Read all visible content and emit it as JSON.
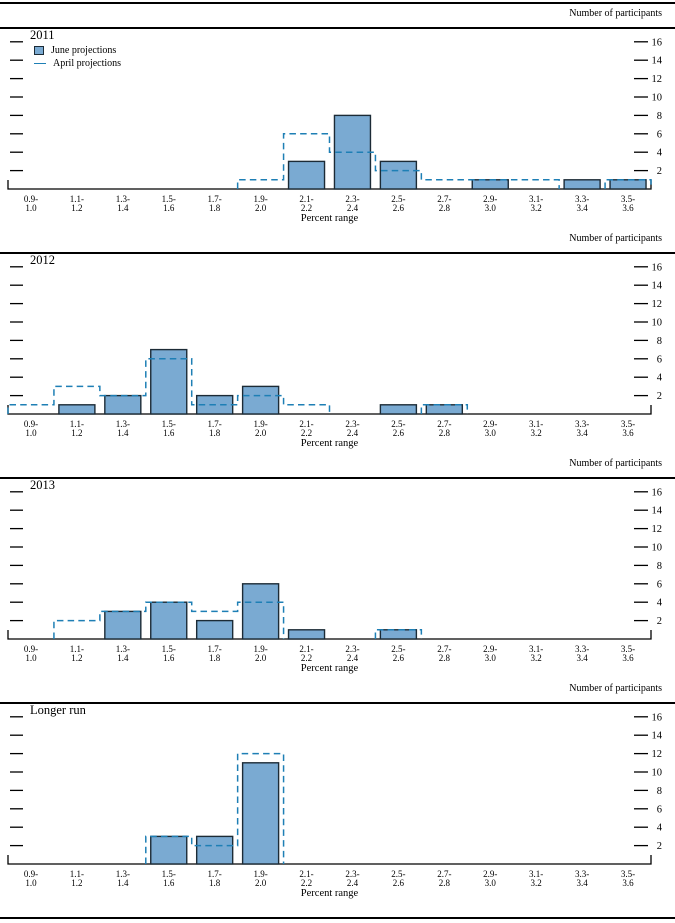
{
  "colors": {
    "bar_fill": "#7aaad2",
    "bar_border": "#1c2b36",
    "april_line": "#1e7fb5",
    "axis": "#000000"
  },
  "chart_data": [
    {
      "type": "bar",
      "title": "2011",
      "ylabel": "Number of participants",
      "xlabel": "Percent range",
      "categories": [
        "0.9-1.0",
        "1.1-1.2",
        "1.3-1.4",
        "1.5-1.6",
        "1.7-1.8",
        "1.9-2.0",
        "2.1-2.2",
        "2.3-2.4",
        "2.5-2.6",
        "2.7-2.8",
        "2.9-3.0",
        "3.1-3.2",
        "3.3-3.4",
        "3.5-3.6"
      ],
      "series": [
        {
          "name": "June projections",
          "style": "bar",
          "values": [
            0,
            0,
            0,
            0,
            0,
            0,
            3,
            8,
            3,
            0,
            1,
            0,
            1,
            1
          ]
        },
        {
          "name": "April projections",
          "style": "dashed-outline",
          "values": [
            0,
            0,
            0,
            0,
            0,
            1,
            6,
            4,
            2,
            1,
            1,
            1,
            0,
            1
          ]
        }
      ],
      "yticks": [
        2,
        4,
        6,
        8,
        10,
        12,
        14,
        16
      ],
      "ylim": [
        0,
        17.6
      ],
      "legend_position": "top-left",
      "grid": false
    },
    {
      "type": "bar",
      "title": "2012",
      "ylabel": "Number of participants",
      "xlabel": "Percent range",
      "categories": [
        "0.9-1.0",
        "1.1-1.2",
        "1.3-1.4",
        "1.5-1.6",
        "1.7-1.8",
        "1.9-2.0",
        "2.1-2.2",
        "2.3-2.4",
        "2.5-2.6",
        "2.7-2.8",
        "2.9-3.0",
        "3.1-3.2",
        "3.3-3.4",
        "3.5-3.6"
      ],
      "series": [
        {
          "name": "June projections",
          "style": "bar",
          "values": [
            0,
            1,
            2,
            7,
            2,
            3,
            0,
            0,
            1,
            1,
            0,
            0,
            0,
            0
          ]
        },
        {
          "name": "April projections",
          "style": "dashed-outline",
          "values": [
            1,
            3,
            2,
            6,
            1,
            2,
            1,
            0,
            0,
            1,
            0,
            0,
            0,
            0
          ]
        }
      ],
      "yticks": [
        2,
        4,
        6,
        8,
        10,
        12,
        14,
        16
      ],
      "ylim": [
        0,
        17.6
      ],
      "legend_position": "none",
      "grid": false
    },
    {
      "type": "bar",
      "title": "2013",
      "ylabel": "Number of participants",
      "xlabel": "Percent range",
      "categories": [
        "0.9-1.0",
        "1.1-1.2",
        "1.3-1.4",
        "1.5-1.6",
        "1.7-1.8",
        "1.9-2.0",
        "2.1-2.2",
        "2.3-2.4",
        "2.5-2.6",
        "2.7-2.8",
        "2.9-3.0",
        "3.1-3.2",
        "3.3-3.4",
        "3.5-3.6"
      ],
      "series": [
        {
          "name": "June projections",
          "style": "bar",
          "values": [
            0,
            0,
            3,
            4,
            2,
            6,
            1,
            0,
            1,
            0,
            0,
            0,
            0,
            0
          ]
        },
        {
          "name": "April projections",
          "style": "dashed-outline",
          "values": [
            0,
            2,
            3,
            4,
            3,
            4,
            0,
            0,
            1,
            0,
            0,
            0,
            0,
            0
          ]
        }
      ],
      "yticks": [
        2,
        4,
        6,
        8,
        10,
        12,
        14,
        16
      ],
      "ylim": [
        0,
        17.6
      ],
      "legend_position": "none",
      "grid": false
    },
    {
      "type": "bar",
      "title": "Longer run",
      "ylabel": "Number of participants",
      "xlabel": "Percent range",
      "categories": [
        "0.9-1.0",
        "1.1-1.2",
        "1.3-1.4",
        "1.5-1.6",
        "1.7-1.8",
        "1.9-2.0",
        "2.1-2.2",
        "2.3-2.4",
        "2.5-2.6",
        "2.7-2.8",
        "2.9-3.0",
        "3.1-3.2",
        "3.3-3.4",
        "3.5-3.6"
      ],
      "series": [
        {
          "name": "June projections",
          "style": "bar",
          "values": [
            0,
            0,
            0,
            3,
            3,
            11,
            0,
            0,
            0,
            0,
            0,
            0,
            0,
            0
          ]
        },
        {
          "name": "April projections",
          "style": "dashed-outline",
          "values": [
            0,
            0,
            0,
            3,
            2,
            12,
            0,
            0,
            0,
            0,
            0,
            0,
            0,
            0
          ]
        }
      ],
      "yticks": [
        2,
        4,
        6,
        8,
        10,
        12,
        14,
        16
      ],
      "ylim": [
        0,
        17.6
      ],
      "legend_position": "none",
      "grid": false
    }
  ]
}
